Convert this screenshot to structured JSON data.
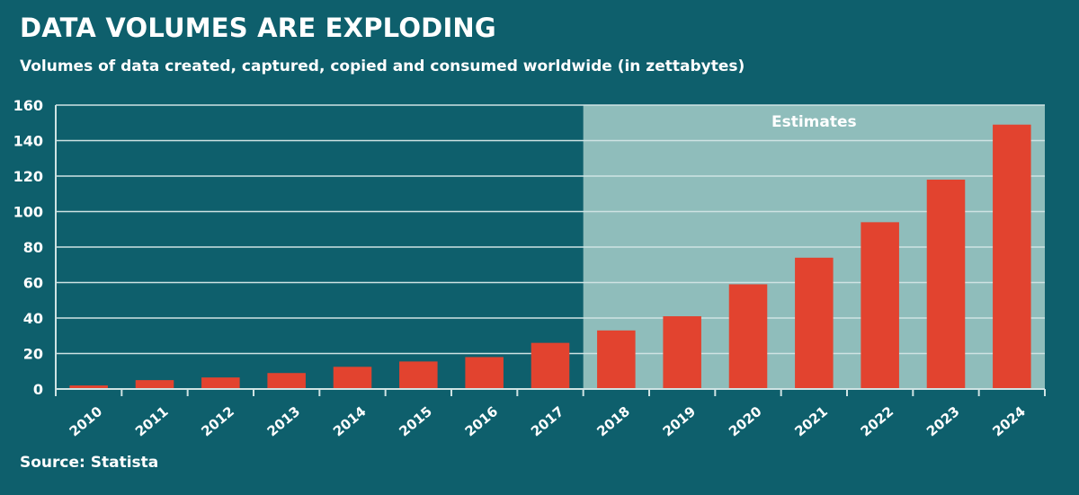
{
  "colors": {
    "background": "#0e5f6c",
    "estimate_region": "#8fbdbb",
    "bar": "#e2432f",
    "grid": "#cfe3e3",
    "text": "#ffffff"
  },
  "chart_data": {
    "type": "bar",
    "title": "DATA VOLUMES ARE EXPLODING",
    "subtitle": "Volumes of data created, captured, copied and consumed worldwide (in zettabytes)",
    "source": "Source: Statista",
    "categories": [
      "2010",
      "2011",
      "2012",
      "2013",
      "2014",
      "2015",
      "2016",
      "2017",
      "2018",
      "2019",
      "2020",
      "2021",
      "2022",
      "2023",
      "2024"
    ],
    "values": [
      2,
      5,
      6.5,
      9,
      12.5,
      15.5,
      18,
      26,
      33,
      41,
      59,
      74,
      94,
      118,
      149
    ],
    "ylim": [
      0,
      160
    ],
    "yticks": [
      0,
      20,
      40,
      60,
      80,
      100,
      120,
      140,
      160
    ],
    "grid": true,
    "annotations": [
      {
        "text": "Estimates",
        "from_category": "2018",
        "to_category": "2024"
      }
    ]
  }
}
